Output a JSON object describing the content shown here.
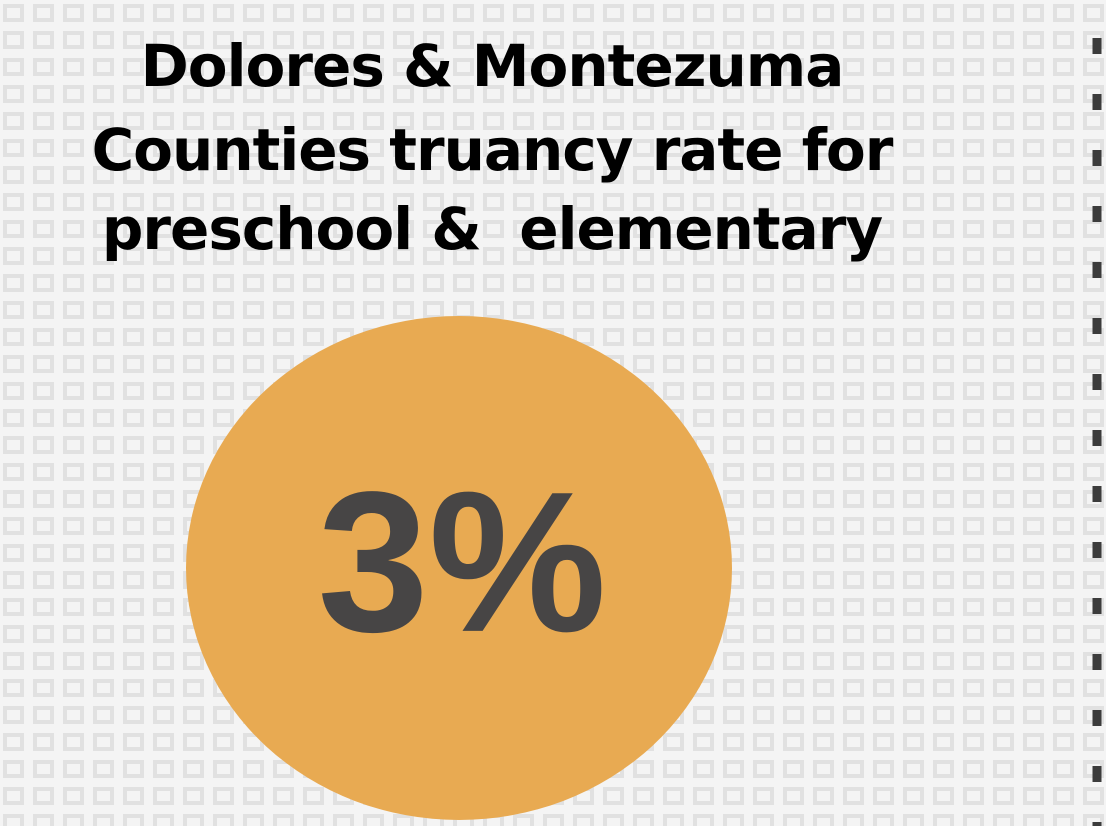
{
  "title": [
    "Dolores & Montezuma",
    "Counties truancy rate for",
    "preschool &  elementary"
  ],
  "stat": "3%"
}
